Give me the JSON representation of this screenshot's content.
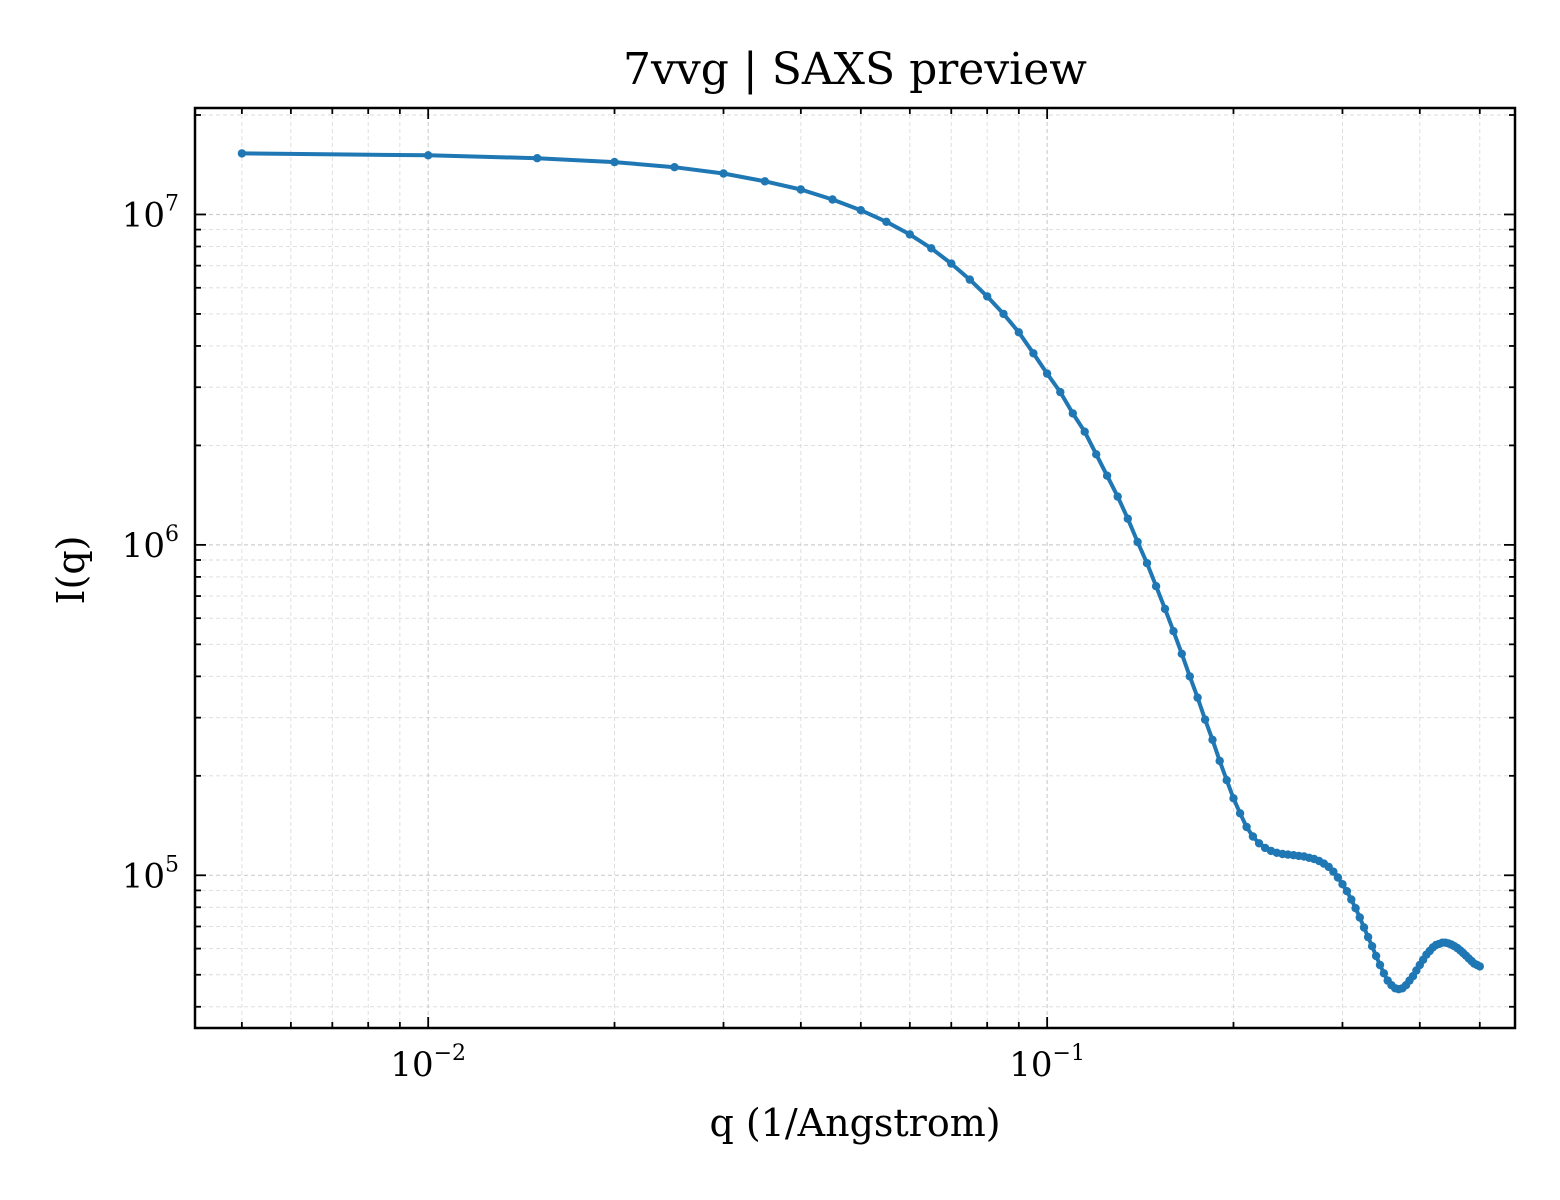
{
  "chart_data": {
    "type": "line",
    "title": "7vvg | SAXS preview",
    "xlabel": "q (1/Angstrom)",
    "ylabel": "I(q)",
    "xscale": "log",
    "yscale": "log",
    "xlim": [
      0.0042,
      0.57
    ],
    "ylim": [
      34500,
      21000000
    ],
    "grid": true,
    "x_tick_labels": [
      {
        "value": 0.01,
        "base": "10",
        "exp": "−2"
      },
      {
        "value": 0.1,
        "base": "10",
        "exp": "−1"
      }
    ],
    "y_tick_labels": [
      {
        "value": 100000,
        "base": "10",
        "exp": "5"
      },
      {
        "value": 1000000,
        "base": "10",
        "exp": "6"
      },
      {
        "value": 10000000,
        "base": "10",
        "exp": "7"
      }
    ],
    "series": [
      {
        "color": "#1f77b4",
        "x": [
          0.005,
          0.01,
          0.015,
          0.02,
          0.025,
          0.03,
          0.035,
          0.04,
          0.045,
          0.05,
          0.055,
          0.06,
          0.065,
          0.07,
          0.075,
          0.08,
          0.085,
          0.09,
          0.095,
          0.1,
          0.105,
          0.11,
          0.115,
          0.12,
          0.125,
          0.13,
          0.135,
          0.14,
          0.145,
          0.15,
          0.155,
          0.16,
          0.165,
          0.17,
          0.175,
          0.18,
          0.185,
          0.19,
          0.195,
          0.2,
          0.205,
          0.21,
          0.215,
          0.22,
          0.225,
          0.23,
          0.235,
          0.24,
          0.245,
          0.25,
          0.255,
          0.26,
          0.265,
          0.27,
          0.275,
          0.28,
          0.285,
          0.29,
          0.295,
          0.3,
          0.305,
          0.31,
          0.315,
          0.32,
          0.325,
          0.33,
          0.335,
          0.34,
          0.345,
          0.35,
          0.355,
          0.36,
          0.365,
          0.37,
          0.375,
          0.38,
          0.385,
          0.39,
          0.395,
          0.4,
          0.405,
          0.41,
          0.415,
          0.42,
          0.425,
          0.43,
          0.435,
          0.44,
          0.445,
          0.45,
          0.455,
          0.46,
          0.465,
          0.47,
          0.475,
          0.48,
          0.485,
          0.49,
          0.495,
          0.5
        ],
        "y": [
          15300000,
          15100000,
          14800000,
          14400000,
          13900000,
          13300000,
          12600000,
          11900000,
          11100000,
          10300000,
          9500000,
          8700000,
          7900000,
          7100000,
          6350000,
          5650000,
          5000000,
          4400000,
          3800000,
          3300000,
          2900000,
          2500000,
          2200000,
          1880000,
          1620000,
          1400000,
          1200000,
          1020000,
          880000,
          750000,
          640000,
          548000,
          468000,
          400000,
          345000,
          296000,
          257000,
          222000,
          194000,
          171000,
          154000,
          140000,
          131000,
          125000,
          121000,
          118500,
          117000,
          116000,
          115500,
          115000,
          114500,
          114000,
          113000,
          112000,
          110500,
          108500,
          106000,
          102500,
          98500,
          94000,
          89500,
          84500,
          79500,
          74500,
          69500,
          65000,
          61000,
          57000,
          53500,
          50500,
          48000,
          46500,
          45500,
          45200,
          45500,
          46500,
          48000,
          49500,
          51500,
          53500,
          55500,
          57500,
          59000,
          60500,
          61500,
          62000,
          62500,
          62500,
          62200,
          61700,
          61000,
          60200,
          59200,
          58200,
          57100,
          56000,
          55000,
          54000,
          53500,
          53000
        ]
      }
    ]
  }
}
